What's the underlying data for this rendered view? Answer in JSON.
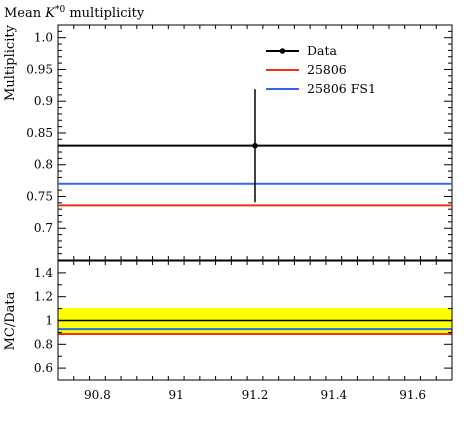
{
  "chart_data": {
    "type": "line",
    "title_prefix": "Mean ",
    "title_symbol": "K",
    "title_superscript": "*0",
    "title_suffix": " multiplicity",
    "xlim": [
      90.7,
      91.7
    ],
    "x_ticks": [
      "90.8",
      "91",
      "91.2",
      "91.4",
      "91.6"
    ],
    "main": {
      "ylabel": "Multiplicity",
      "ylim": [
        0.65,
        1.02
      ],
      "y_ticks": [
        "0.7",
        "0.75",
        "0.8",
        "0.85",
        "0.9",
        "0.95",
        "1.0"
      ]
    },
    "ratio": {
      "ylabel": "MC/Data",
      "ylim": [
        0.5,
        1.5
      ],
      "y_ticks": [
        "0.6",
        "0.8",
        "1",
        "1.2",
        "1.4"
      ],
      "band": [
        0.893,
        1.107
      ],
      "band_color": "#ffff00"
    },
    "data_point": {
      "x": 91.2,
      "y": 0.83,
      "yerr_low": 0.089,
      "yerr_high": 0.089
    },
    "series": [
      {
        "name": "Data",
        "value": 0.83,
        "color": "#000000",
        "ratio": 1.0
      },
      {
        "name": "25806",
        "value": 0.736,
        "color": "#ee3311",
        "ratio": 0.887
      },
      {
        "name": "25806 FS1",
        "value": 0.77,
        "color": "#3366ee",
        "ratio": 0.928
      }
    ],
    "legend_position": "top-right"
  }
}
